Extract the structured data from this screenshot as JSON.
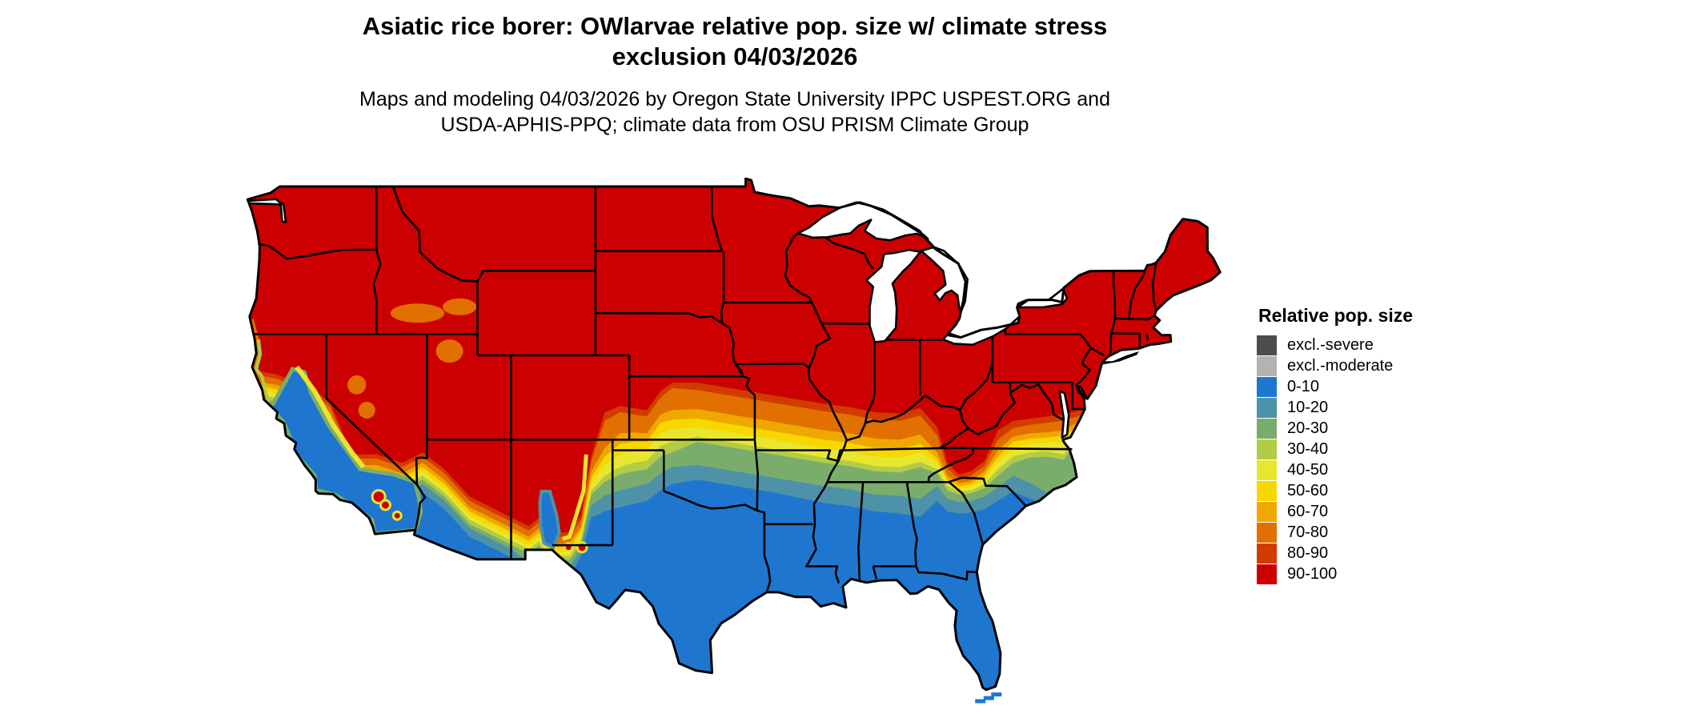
{
  "title": {
    "line1": "Asiatic rice borer: OWlarvae relative pop. size w/ climate stress",
    "line2": "exclusion 04/03/2026"
  },
  "subtitle": {
    "line1": "Maps and modeling 04/03/2026 by Oregon State University IPPC USPEST.ORG and",
    "line2": "USDA-APHIS-PPQ; climate data from OSU PRISM Climate Group"
  },
  "legend": {
    "title": "Relative pop. size",
    "items": [
      {
        "label": "excl.-severe",
        "color": "#4d4d4d"
      },
      {
        "label": "excl.-moderate",
        "color": "#b3b3b3"
      },
      {
        "label": "0-10",
        "color": "#1f76cf"
      },
      {
        "label": "10-20",
        "color": "#4d92a8"
      },
      {
        "label": "20-30",
        "color": "#7aad6c"
      },
      {
        "label": "30-40",
        "color": "#b3cc46"
      },
      {
        "label": "40-50",
        "color": "#e9e630"
      },
      {
        "label": "50-60",
        "color": "#f6d800"
      },
      {
        "label": "60-70",
        "color": "#efa800"
      },
      {
        "label": "70-80",
        "color": "#e17000"
      },
      {
        "label": "80-90",
        "color": "#d23b00"
      },
      {
        "label": "90-100",
        "color": "#cc0000"
      }
    ]
  }
}
